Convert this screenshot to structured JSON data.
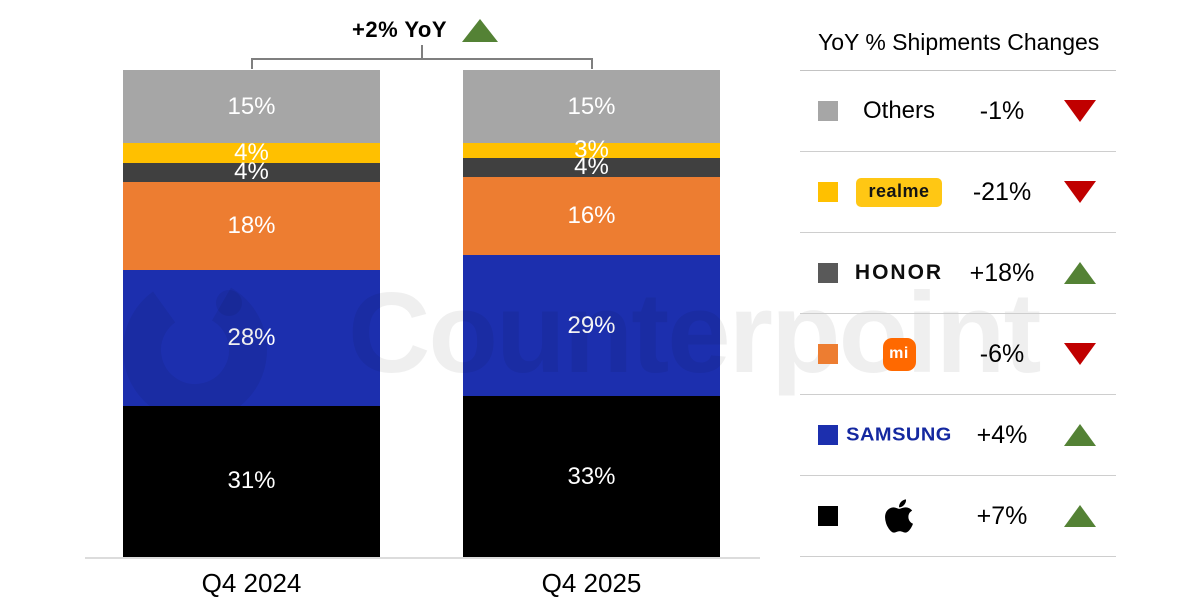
{
  "annotation": {
    "label": "+2% YoY",
    "direction": "up"
  },
  "watermark": {
    "text": "Counterpoint"
  },
  "chart_data": {
    "type": "bar",
    "stacked": true,
    "unit": "%",
    "title": "",
    "categories": [
      "Q4 2024",
      "Q4 2025"
    ],
    "ylim": [
      0,
      100
    ],
    "total_yoy_change": "+2%",
    "series_top_to_bottom": [
      {
        "name": "Others",
        "color": "#a6a6a6",
        "values": [
          15,
          15
        ]
      },
      {
        "name": "realme",
        "color": "#ffc000",
        "values": [
          4,
          3
        ]
      },
      {
        "name": "HONOR",
        "color": "#404040",
        "values": [
          4,
          4
        ]
      },
      {
        "name": "Xiaomi",
        "color": "#ed7d31",
        "values": [
          18,
          16
        ]
      },
      {
        "name": "Samsung",
        "color": "#1c2fae",
        "values": [
          28,
          29
        ]
      },
      {
        "name": "Apple",
        "color": "#000000",
        "values": [
          31,
          33
        ]
      }
    ]
  },
  "legend": {
    "title": "YoY % Shipments Changes",
    "rows": [
      {
        "brand": "Others",
        "change": "-1%",
        "direction": "down",
        "swatch": "#a6a6a6",
        "icon": "none"
      },
      {
        "brand": "realme",
        "change": "-21%",
        "direction": "down",
        "swatch": "#ffc000",
        "icon": "realme-logo"
      },
      {
        "brand": "HONOR",
        "change": "+18%",
        "direction": "up",
        "swatch": "#595959",
        "icon": "honor-logo"
      },
      {
        "brand": "Xiaomi",
        "change": "-6%",
        "direction": "down",
        "swatch": "#ed7d31",
        "icon": "xiaomi-logo",
        "logo_text": "mi"
      },
      {
        "brand": "SAMSUNG",
        "change": "+4%",
        "direction": "up",
        "swatch": "#1c2fae",
        "icon": "samsung-logo"
      },
      {
        "brand": "Apple",
        "change": "+7%",
        "direction": "up",
        "swatch": "#000000",
        "icon": "apple-logo"
      }
    ]
  },
  "colors": {
    "up": "#548235",
    "down": "#c00000"
  }
}
